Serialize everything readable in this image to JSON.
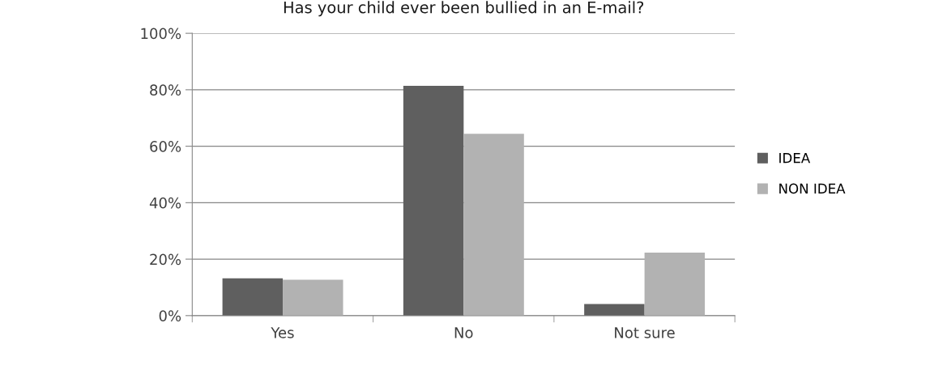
{
  "chart_data": {
    "type": "bar",
    "title": "Has your child ever been bullied in an E-mail?",
    "categories": [
      "Yes",
      "No",
      "Not sure"
    ],
    "series": [
      {
        "name": "IDEA",
        "color": "#5f5f5f",
        "values": [
          13.2,
          81.4,
          4.1
        ]
      },
      {
        "name": "NON IDEA",
        "color": "#b2b2b2",
        "values": [
          12.7,
          64.4,
          22.3
        ]
      }
    ],
    "ylim": [
      0,
      100
    ],
    "yticks": [
      {
        "value": 0,
        "label": "0%"
      },
      {
        "value": 20,
        "label": "20%"
      },
      {
        "value": 40,
        "label": "40%"
      },
      {
        "value": 60,
        "label": "60%"
      },
      {
        "value": 80,
        "label": "80%"
      },
      {
        "value": 100,
        "label": "100%"
      }
    ],
    "grid": "y",
    "legend": "right"
  }
}
